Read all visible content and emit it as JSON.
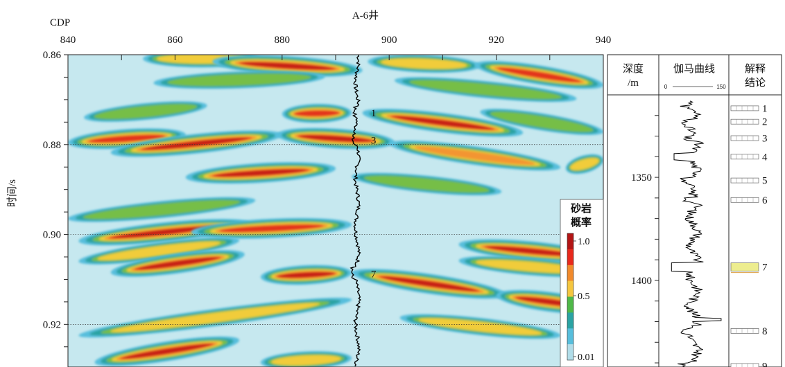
{
  "chart_data": [
    {
      "type": "heatmap",
      "title": "A-6井",
      "xlabel": "CDP",
      "ylabel": "时间/s",
      "x_ticks": [
        840,
        860,
        880,
        900,
        920,
        940
      ],
      "y_ticks": [
        "0.86",
        "0.88",
        "0.90",
        "0.92"
      ],
      "xlim": [
        840,
        940
      ],
      "ylim": [
        0.86,
        0.9295
      ],
      "well_cdp": 894,
      "bands": [
        {
          "x0": 854,
          "x1": 876,
          "y0": 0.8609,
          "y1": 0.8609,
          "peak": 0.56
        },
        {
          "x0": 867,
          "x1": 895,
          "y0": 0.8615,
          "y1": 0.8635,
          "peak": 0.98
        },
        {
          "x0": 896,
          "x1": 917,
          "y0": 0.8615,
          "y1": 0.8625,
          "peak": 0.6
        },
        {
          "x0": 916,
          "x1": 940,
          "y0": 0.8622,
          "y1": 0.8668,
          "peak": 0.82
        },
        {
          "x0": 856,
          "x1": 888,
          "y0": 0.8663,
          "y1": 0.8649,
          "peak": 0.45
        },
        {
          "x0": 901,
          "x1": 935,
          "y0": 0.8657,
          "y1": 0.8698,
          "peak": 0.45
        },
        {
          "x0": 843,
          "x1": 866,
          "y0": 0.874,
          "y1": 0.8713,
          "peak": 0.4
        },
        {
          "x0": 880,
          "x1": 893,
          "y0": 0.8732,
          "y1": 0.8729,
          "peak": 0.82
        },
        {
          "x0": 895,
          "x1": 925,
          "y0": 0.8729,
          "y1": 0.8774,
          "peak": 0.93
        },
        {
          "x0": 917,
          "x1": 940,
          "y0": 0.8727,
          "y1": 0.8772,
          "peak": 0.45
        },
        {
          "x0": 840,
          "x1": 862,
          "y0": 0.8796,
          "y1": 0.8778,
          "peak": 0.86
        },
        {
          "x0": 848,
          "x1": 880,
          "y0": 0.8818,
          "y1": 0.8778,
          "peak": 0.92
        },
        {
          "x0": 879,
          "x1": 901,
          "y0": 0.8778,
          "y1": 0.8795,
          "peak": 0.97
        },
        {
          "x0": 900,
          "x1": 932,
          "y0": 0.8798,
          "y1": 0.8851,
          "peak": 0.72
        },
        {
          "x0": 862,
          "x1": 890,
          "y0": 0.8873,
          "y1": 0.8853,
          "peak": 0.96
        },
        {
          "x0": 893,
          "x1": 921,
          "y0": 0.8871,
          "y1": 0.8905,
          "peak": 0.42
        },
        {
          "x0": 933,
          "x1": 940,
          "y0": 0.8855,
          "y1": 0.8832,
          "peak": 0.55
        },
        {
          "x0": 840,
          "x1": 875,
          "y0": 0.8965,
          "y1": 0.8924,
          "peak": 0.45
        },
        {
          "x0": 842,
          "x1": 874,
          "y0": 0.9015,
          "y1": 0.8975,
          "peak": 0.93
        },
        {
          "x0": 863,
          "x1": 893,
          "y0": 0.8995,
          "y1": 0.8978,
          "peak": 0.87
        },
        {
          "x0": 842,
          "x1": 872,
          "y0": 0.906,
          "y1": 0.9013,
          "peak": 0.5
        },
        {
          "x0": 913,
          "x1": 940,
          "y0": 0.9022,
          "y1": 0.9052,
          "peak": 0.91
        },
        {
          "x0": 913,
          "x1": 940,
          "y0": 0.9058,
          "y1": 0.9085,
          "peak": 0.55
        },
        {
          "x0": 848,
          "x1": 873,
          "y0": 0.9085,
          "y1": 0.9044,
          "peak": 0.95
        },
        {
          "x0": 876,
          "x1": 893,
          "y0": 0.9095,
          "y1": 0.9085,
          "peak": 0.9
        },
        {
          "x0": 893,
          "x1": 922,
          "y0": 0.9085,
          "y1": 0.9135,
          "peak": 0.98
        },
        {
          "x0": 920,
          "x1": 940,
          "y0": 0.9135,
          "y1": 0.9165,
          "peak": 0.96
        },
        {
          "x0": 842,
          "x1": 893,
          "y0": 0.9225,
          "y1": 0.9145,
          "peak": 0.5
        },
        {
          "x0": 902,
          "x1": 932,
          "y0": 0.9185,
          "y1": 0.9225,
          "peak": 0.5
        },
        {
          "x0": 845,
          "x1": 872,
          "y0": 0.9285,
          "y1": 0.9235,
          "peak": 0.95
        },
        {
          "x0": 876,
          "x1": 893,
          "y0": 0.9285,
          "y1": 0.9275,
          "peak": 0.6
        }
      ],
      "markers": [
        {
          "label": "1",
          "y": 0.8728
        },
        {
          "label": "3",
          "y": 0.8789
        },
        {
          "label": "7",
          "y": 0.9086
        }
      ],
      "colorbar": {
        "title_line1": "砂岩",
        "title_line2": "概率",
        "ticks": [
          "1.0",
          "0.5",
          "0.01"
        ],
        "colors": [
          "#b31515",
          "#e8291c",
          "#f18a2c",
          "#f5c63f",
          "#4fb848",
          "#2aa3a3",
          "#57bedc",
          "#b1dde9"
        ]
      },
      "colormap": {
        "background": "#c6e8ef",
        "stops": [
          [
            0.0,
            "#c6e8ef"
          ],
          [
            0.12,
            "#a9dbe8"
          ],
          [
            0.22,
            "#57bedc"
          ],
          [
            0.32,
            "#2aa3a3"
          ],
          [
            0.4,
            "#58b94a"
          ],
          [
            0.5,
            "#f0d43c"
          ],
          [
            0.62,
            "#f5a235"
          ],
          [
            0.78,
            "#e8391f"
          ],
          [
            1.0,
            "#b31515"
          ]
        ]
      }
    },
    {
      "type": "line",
      "panel_headers": {
        "depth": [
          "深度",
          "/m"
        ],
        "gamma": "伽马曲线",
        "gamma_min": "0",
        "gamma_max": "150",
        "conclusion": [
          "解释",
          "结论"
        ]
      },
      "depth_ticks": [
        "1350",
        "1400"
      ],
      "depth_range": [
        1310,
        1442
      ],
      "gamma_range": [
        0,
        150
      ],
      "layers": [
        {
          "label": "1",
          "depth": 1316.5,
          "color": "#ffffff"
        },
        {
          "label": "2",
          "depth": 1323.0,
          "color": "#ffffff"
        },
        {
          "label": "3",
          "depth": 1331.0,
          "color": "#ffffff"
        },
        {
          "label": "4",
          "depth": 1340.0,
          "color": "#ffffff"
        },
        {
          "label": "5",
          "depth": 1351.5,
          "color": "#ffffff"
        },
        {
          "label": "6",
          "depth": 1361.0,
          "color": "#ffffff"
        },
        {
          "label": "7",
          "depth": 1393.5,
          "color": "#eded8f"
        },
        {
          "label": "8",
          "depth": 1424.5,
          "color": "#ffffff"
        },
        {
          "label": "9",
          "depth": 1441.5,
          "color": "#ffffff"
        }
      ]
    }
  ]
}
